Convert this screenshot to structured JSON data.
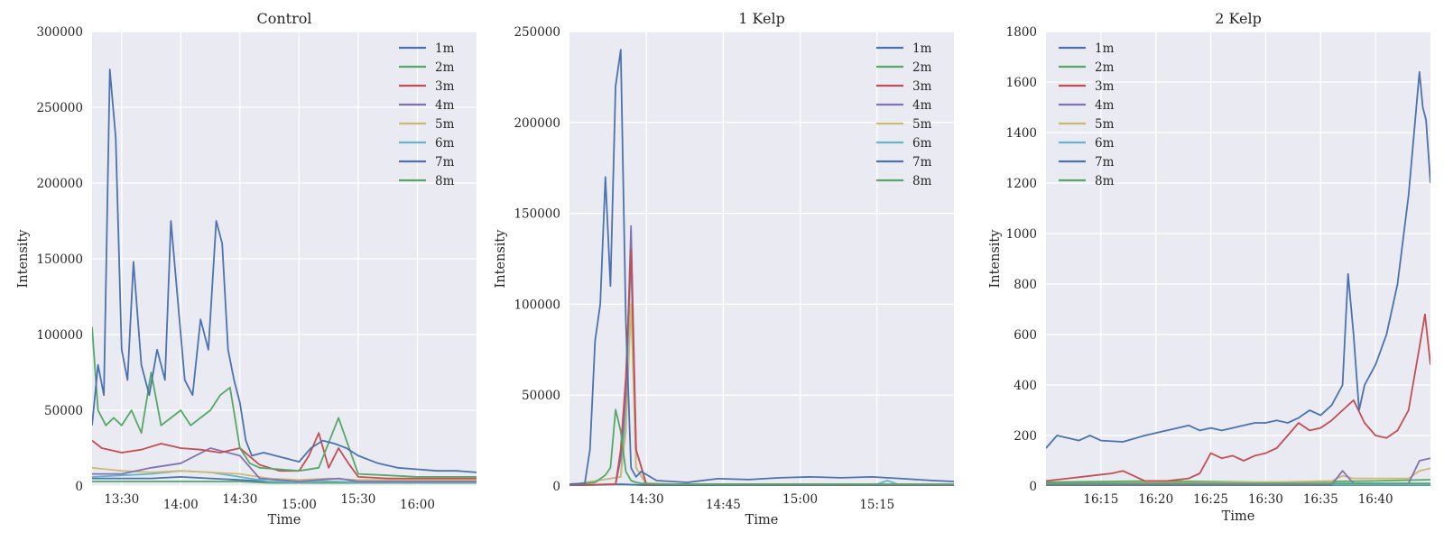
{
  "chart_data": [
    {
      "type": "line",
      "title": "Control",
      "xlabel": "Time",
      "ylabel": "Intensity",
      "x_range": [
        "13:15",
        "16:30"
      ],
      "x_ticks": [
        "13:30",
        "14:00",
        "14:30",
        "15:00",
        "15:30",
        "16:00"
      ],
      "ylim": [
        0,
        300000
      ],
      "y_ticks": [
        "0",
        "50000",
        "100000",
        "150000",
        "200000",
        "250000",
        "300000"
      ],
      "legend_position": "top-right",
      "grid": true,
      "series": [
        {
          "name": "1m",
          "color": "#4c72b0",
          "x": [
            "13:15",
            "13:18",
            "13:21",
            "13:24",
            "13:27",
            "13:30",
            "13:33",
            "13:36",
            "13:40",
            "13:44",
            "13:48",
            "13:52",
            "13:55",
            "13:58",
            "14:02",
            "14:06",
            "14:10",
            "14:14",
            "14:18",
            "14:21",
            "14:24",
            "14:27",
            "14:30",
            "14:33",
            "14:36",
            "14:42",
            "14:48",
            "14:54",
            "15:00",
            "15:06",
            "15:12",
            "15:18",
            "15:24",
            "15:30",
            "15:40",
            "15:50",
            "16:00",
            "16:10",
            "16:20",
            "16:30"
          ],
          "y": [
            40000,
            80000,
            60000,
            275000,
            230000,
            90000,
            70000,
            148000,
            80000,
            60000,
            90000,
            70000,
            175000,
            130000,
            70000,
            60000,
            110000,
            90000,
            175000,
            160000,
            90000,
            70000,
            55000,
            30000,
            20000,
            22000,
            20000,
            18000,
            16000,
            25000,
            30000,
            28000,
            25000,
            20000,
            15000,
            12000,
            11000,
            10000,
            10000,
            9000
          ]
        },
        {
          "name": "2m",
          "color": "#55a868",
          "x": [
            "13:15",
            "13:18",
            "13:22",
            "13:26",
            "13:30",
            "13:35",
            "13:40",
            "13:45",
            "13:50",
            "13:55",
            "14:00",
            "14:05",
            "14:10",
            "14:15",
            "14:20",
            "14:25",
            "14:30",
            "14:35",
            "14:40",
            "14:50",
            "15:00",
            "15:10",
            "15:20",
            "15:30",
            "15:45",
            "16:00",
            "16:15",
            "16:30"
          ],
          "y": [
            105000,
            50000,
            40000,
            45000,
            40000,
            50000,
            35000,
            75000,
            40000,
            45000,
            50000,
            40000,
            45000,
            50000,
            60000,
            65000,
            25000,
            15000,
            12000,
            11000,
            10000,
            12000,
            45000,
            8000,
            7000,
            6000,
            6000,
            6000
          ]
        },
        {
          "name": "3m",
          "color": "#c44e52",
          "x": [
            "13:15",
            "13:20",
            "13:30",
            "13:40",
            "13:50",
            "14:00",
            "14:10",
            "14:20",
            "14:30",
            "14:40",
            "14:50",
            "15:00",
            "15:05",
            "15:10",
            "15:15",
            "15:20",
            "15:25",
            "15:30",
            "15:45",
            "16:00",
            "16:15",
            "16:30"
          ],
          "y": [
            30000,
            25000,
            22000,
            24000,
            28000,
            25000,
            24000,
            22000,
            25000,
            14000,
            10000,
            10000,
            20000,
            35000,
            12000,
            25000,
            15000,
            6000,
            5000,
            5000,
            5000,
            5000
          ]
        },
        {
          "name": "4m",
          "color": "#8172b2",
          "x": [
            "13:15",
            "13:30",
            "13:45",
            "14:00",
            "14:15",
            "14:30",
            "14:40",
            "14:50",
            "15:00",
            "15:10",
            "15:20",
            "15:30",
            "15:45",
            "16:00",
            "16:15",
            "16:30"
          ],
          "y": [
            8000,
            8000,
            12000,
            15000,
            25000,
            20000,
            5000,
            4000,
            3000,
            4000,
            5000,
            3000,
            3000,
            3000,
            3000,
            3000
          ]
        },
        {
          "name": "5m",
          "color": "#ccb974",
          "x": [
            "13:15",
            "13:30",
            "13:45",
            "14:00",
            "14:15",
            "14:30",
            "14:45",
            "15:00",
            "15:15",
            "15:30",
            "15:45",
            "16:00",
            "16:15",
            "16:30"
          ],
          "y": [
            12000,
            10000,
            9000,
            10000,
            9000,
            8000,
            5000,
            4000,
            5000,
            4000,
            4000,
            4000,
            4000,
            4000
          ]
        },
        {
          "name": "6m",
          "color": "#64b5cd",
          "x": [
            "13:15",
            "13:30",
            "13:45",
            "14:00",
            "14:15",
            "14:30",
            "14:45",
            "15:00",
            "15:15",
            "15:30",
            "15:45",
            "16:00",
            "16:15",
            "16:30"
          ],
          "y": [
            6000,
            7000,
            8000,
            10000,
            9000,
            6000,
            3000,
            2500,
            3000,
            2500,
            2500,
            2500,
            2500,
            2500
          ]
        },
        {
          "name": "7m",
          "color": "#4c72b0",
          "x": [
            "13:15",
            "13:30",
            "13:45",
            "14:00",
            "14:15",
            "14:30",
            "14:45",
            "15:00",
            "15:15",
            "15:30",
            "15:45",
            "16:00",
            "16:15",
            "16:30"
          ],
          "y": [
            5000,
            5000,
            5000,
            6000,
            5000,
            4000,
            3000,
            2500,
            3000,
            2500,
            2500,
            2500,
            2500,
            2500
          ]
        },
        {
          "name": "8m",
          "color": "#55a868",
          "x": [
            "13:15",
            "13:30",
            "13:45",
            "14:00",
            "14:15",
            "14:30",
            "14:45",
            "15:00",
            "15:15",
            "15:30",
            "15:45",
            "16:00",
            "16:15",
            "16:30"
          ],
          "y": [
            3000,
            3000,
            3000,
            3000,
            3000,
            3000,
            2000,
            2000,
            2000,
            2000,
            2000,
            2000,
            2000,
            2000
          ]
        }
      ]
    },
    {
      "type": "line",
      "title": "1 Kelp",
      "xlabel": "Time",
      "ylabel": "Intensity",
      "x_range": [
        "14:15",
        "15:30"
      ],
      "x_ticks": [
        "14:30",
        "14:45",
        "15:00",
        "15:15"
      ],
      "ylim": [
        0,
        250000
      ],
      "y_ticks": [
        "0",
        "50000",
        "100000",
        "150000",
        "200000",
        "250000"
      ],
      "legend_position": "top-right",
      "grid": true,
      "series": [
        {
          "name": "1m",
          "color": "#4c72b0",
          "x": [
            "14:15",
            "14:18",
            "14:19",
            "14:20",
            "14:21",
            "14:22",
            "14:23",
            "14:24",
            "14:25",
            "14:26",
            "14:27",
            "14:28",
            "14:29",
            "14:32",
            "14:38",
            "14:44",
            "14:50",
            "14:56",
            "15:02",
            "15:08",
            "15:14",
            "15:20",
            "15:26",
            "15:30"
          ],
          "y": [
            1000,
            1500,
            20000,
            80000,
            100000,
            170000,
            110000,
            220000,
            240000,
            90000,
            10000,
            5000,
            8000,
            3000,
            2000,
            4000,
            3500,
            4500,
            5000,
            4500,
            5000,
            4000,
            3000,
            2500
          ]
        },
        {
          "name": "2m",
          "color": "#55a868",
          "x": [
            "14:15",
            "14:20",
            "14:22",
            "14:23",
            "14:24",
            "14:25",
            "14:26",
            "14:27",
            "14:28",
            "14:29",
            "14:35",
            "15:30"
          ],
          "y": [
            1000,
            2000,
            6000,
            10000,
            42000,
            30000,
            8000,
            3000,
            2000,
            1500,
            1000,
            1000
          ]
        },
        {
          "name": "3m",
          "color": "#c44e52",
          "x": [
            "14:15",
            "14:24",
            "14:25",
            "14:26",
            "14:27",
            "14:28",
            "14:30",
            "15:30"
          ],
          "y": [
            500,
            1000,
            20000,
            60000,
            130000,
            20000,
            1000,
            800
          ]
        },
        {
          "name": "4m",
          "color": "#8172b2",
          "x": [
            "14:15",
            "14:24",
            "14:25",
            "14:26",
            "14:27",
            "14:28",
            "14:30",
            "15:30"
          ],
          "y": [
            500,
            1000,
            15000,
            50000,
            143000,
            20000,
            1000,
            800
          ]
        },
        {
          "name": "5m",
          "color": "#ccb974",
          "x": [
            "14:15",
            "14:25",
            "14:26",
            "14:27",
            "14:28",
            "14:30",
            "15:30"
          ],
          "y": [
            500,
            5000,
            30000,
            100000,
            10000,
            1000,
            800
          ]
        },
        {
          "name": "6m",
          "color": "#64b5cd",
          "x": [
            "14:15",
            "14:25",
            "14:26",
            "14:27",
            "14:28",
            "14:30",
            "15:15",
            "15:17",
            "15:19",
            "15:30"
          ],
          "y": [
            500,
            5000,
            40000,
            128000,
            10000,
            1000,
            1000,
            3000,
            1000,
            800
          ]
        },
        {
          "name": "7m",
          "color": "#4c72b0",
          "x": [
            "14:15",
            "14:25",
            "14:30",
            "15:30"
          ],
          "y": [
            300,
            1000,
            500,
            400
          ]
        },
        {
          "name": "8m",
          "color": "#55a868",
          "x": [
            "14:15",
            "14:25",
            "14:30",
            "15:30"
          ],
          "y": [
            300,
            800,
            400,
            300
          ]
        }
      ]
    },
    {
      "type": "line",
      "title": "2 Kelp",
      "xlabel": "Time",
      "ylabel": "Intensity",
      "x_range": [
        "16:10",
        "16:45"
      ],
      "x_ticks": [
        "16:15",
        "16:20",
        "16:25",
        "16:30",
        "16:35",
        "16:40"
      ],
      "ylim": [
        0,
        1800
      ],
      "y_ticks": [
        "0",
        "200",
        "400",
        "600",
        "800",
        "1000",
        "1200",
        "1400",
        "1600",
        "1800"
      ],
      "legend_position": "top-left",
      "grid": true,
      "series": [
        {
          "name": "1m",
          "color": "#4c72b0",
          "x": [
            "16:10",
            "16:11",
            "16:12",
            "16:13",
            "16:14",
            "16:15",
            "16:17",
            "16:19",
            "16:21",
            "16:22",
            "16:23",
            "16:24",
            "16:25",
            "16:26",
            "16:27",
            "16:28",
            "16:29",
            "16:30",
            "16:31",
            "16:32",
            "16:33",
            "16:34",
            "16:35",
            "16:36",
            "16:37",
            "16:37.5",
            "16:38",
            "16:38.5",
            "16:39",
            "16:40",
            "16:41",
            "16:42",
            "16:43",
            "16:44",
            "16:44.3",
            "16:44.6",
            "16:45"
          ],
          "y": [
            150,
            200,
            190,
            180,
            200,
            180,
            175,
            200,
            220,
            230,
            240,
            220,
            230,
            220,
            230,
            240,
            250,
            250,
            260,
            250,
            270,
            300,
            280,
            320,
            400,
            840,
            600,
            300,
            400,
            480,
            600,
            800,
            1150,
            1640,
            1500,
            1450,
            1200
          ]
        },
        {
          "name": "2m",
          "color": "#55a868",
          "x": [
            "16:10",
            "16:20",
            "16:30",
            "16:40",
            "16:45"
          ],
          "y": [
            10,
            10,
            10,
            10,
            10
          ]
        },
        {
          "name": "3m",
          "color": "#c44e52",
          "x": [
            "16:10",
            "16:12",
            "16:14",
            "16:16",
            "16:17",
            "16:19",
            "16:21",
            "16:23",
            "16:24",
            "16:25",
            "16:26",
            "16:27",
            "16:28",
            "16:29",
            "16:30",
            "16:31",
            "16:32",
            "16:33",
            "16:34",
            "16:35",
            "16:36",
            "16:37",
            "16:38",
            "16:39",
            "16:40",
            "16:41",
            "16:42",
            "16:43",
            "16:44",
            "16:44.5",
            "16:45"
          ],
          "y": [
            20,
            30,
            40,
            50,
            60,
            20,
            20,
            30,
            50,
            130,
            110,
            120,
            100,
            120,
            130,
            150,
            200,
            250,
            220,
            230,
            260,
            300,
            340,
            250,
            200,
            190,
            220,
            300,
            550,
            680,
            480
          ]
        },
        {
          "name": "4m",
          "color": "#8172b2",
          "x": [
            "16:10",
            "16:30",
            "16:36",
            "16:37",
            "16:38",
            "16:43",
            "16:44",
            "16:45"
          ],
          "y": [
            5,
            5,
            5,
            60,
            10,
            10,
            100,
            110
          ]
        },
        {
          "name": "5m",
          "color": "#ccb974",
          "x": [
            "16:10",
            "16:30",
            "16:36",
            "16:37",
            "16:38",
            "16:43",
            "16:44",
            "16:45"
          ],
          "y": [
            10,
            15,
            20,
            40,
            30,
            30,
            60,
            70
          ]
        },
        {
          "name": "6m",
          "color": "#64b5cd",
          "x": [
            "16:10",
            "16:30",
            "16:45"
          ],
          "y": [
            5,
            5,
            5
          ]
        },
        {
          "name": "7m",
          "color": "#4c72b0",
          "x": [
            "16:10",
            "16:30",
            "16:45"
          ],
          "y": [
            3,
            3,
            3
          ]
        },
        {
          "name": "8m",
          "color": "#55a868",
          "x": [
            "16:10",
            "16:20",
            "16:30",
            "16:40",
            "16:45"
          ],
          "y": [
            15,
            20,
            15,
            20,
            25
          ]
        }
      ]
    }
  ]
}
